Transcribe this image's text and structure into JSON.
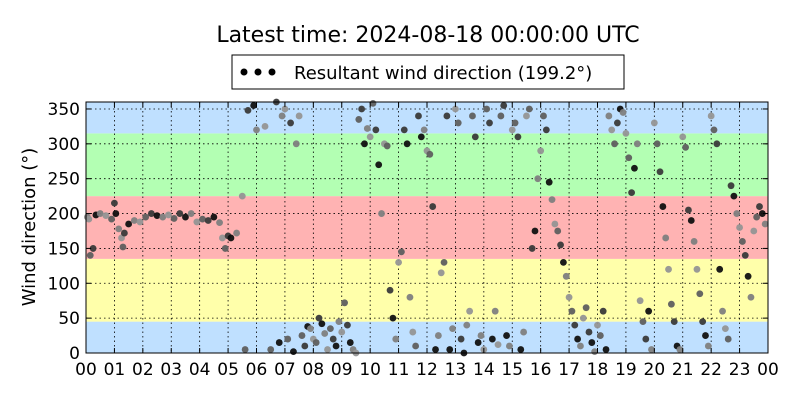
{
  "chart_data": {
    "type": "scatter",
    "title": "Latest time: 2024-08-18 00:00:00 UTC",
    "ylabel": "Wind direction (°)",
    "xlabel": "",
    "xlim": [
      0,
      24
    ],
    "ylim": [
      0,
      360
    ],
    "grid": true,
    "legend": {
      "placement": "top-center",
      "label": "Resultant wind direction (199.2°)"
    },
    "x_ticks": [
      "00",
      "01",
      "02",
      "03",
      "04",
      "05",
      "06",
      "07",
      "08",
      "09",
      "10",
      "11",
      "12",
      "13",
      "14",
      "15",
      "16",
      "17",
      "18",
      "19",
      "20",
      "21",
      "22",
      "23",
      "00"
    ],
    "y_ticks": [
      0,
      50,
      100,
      150,
      200,
      250,
      300,
      350
    ],
    "bands": [
      {
        "from": 0,
        "to": 45,
        "color": "#bfe0ff"
      },
      {
        "from": 45,
        "to": 135,
        "color": "#ffffaa"
      },
      {
        "from": 135,
        "to": 225,
        "color": "#ffb3b3"
      },
      {
        "from": 225,
        "to": 315,
        "color": "#b3ffb3"
      },
      {
        "from": 315,
        "to": 360,
        "color": "#bfe0ff"
      }
    ],
    "series": [
      {
        "colors": [
          "#808080",
          "#959595",
          "#5f5f5f",
          "#3a3a3a",
          "#111111"
        ],
        "points": [
          [
            0.05,
            195
          ],
          [
            0.1,
            192
          ],
          [
            0.15,
            140
          ],
          [
            0.25,
            150
          ],
          [
            0.35,
            198
          ],
          [
            0.5,
            200
          ],
          [
            0.7,
            197
          ],
          [
            0.9,
            192
          ],
          [
            1.0,
            215
          ],
          [
            1.05,
            200
          ],
          [
            1.15,
            178
          ],
          [
            1.25,
            165
          ],
          [
            1.3,
            152
          ],
          [
            1.35,
            172
          ],
          [
            1.5,
            185
          ],
          [
            1.7,
            190
          ],
          [
            1.9,
            188
          ],
          [
            2.1,
            195
          ],
          [
            2.3,
            200
          ],
          [
            2.5,
            197
          ],
          [
            2.7,
            195
          ],
          [
            2.9,
            198
          ],
          [
            3.1,
            193
          ],
          [
            3.3,
            200
          ],
          [
            3.5,
            195
          ],
          [
            3.7,
            200
          ],
          [
            3.9,
            188
          ],
          [
            4.1,
            192
          ],
          [
            4.3,
            190
          ],
          [
            4.5,
            195
          ],
          [
            4.7,
            187
          ],
          [
            4.8,
            165
          ],
          [
            4.9,
            150
          ],
          [
            5.0,
            168
          ],
          [
            5.1,
            165
          ],
          [
            5.3,
            172
          ],
          [
            5.5,
            225
          ],
          [
            5.6,
            5
          ],
          [
            5.7,
            348
          ],
          [
            5.9,
            355
          ],
          [
            6.0,
            320
          ],
          [
            6.3,
            325
          ],
          [
            6.5,
            5
          ],
          [
            6.7,
            360
          ],
          [
            6.8,
            15
          ],
          [
            6.9,
            340
          ],
          [
            7.0,
            350
          ],
          [
            7.1,
            20
          ],
          [
            7.2,
            330
          ],
          [
            7.3,
            2
          ],
          [
            7.4,
            300
          ],
          [
            7.5,
            340
          ],
          [
            7.6,
            25
          ],
          [
            7.7,
            10
          ],
          [
            7.8,
            38
          ],
          [
            7.9,
            35
          ],
          [
            8.0,
            20
          ],
          [
            8.1,
            15
          ],
          [
            8.2,
            50
          ],
          [
            8.3,
            42
          ],
          [
            8.4,
            28
          ],
          [
            8.5,
            5
          ],
          [
            8.6,
            35
          ],
          [
            8.7,
            20
          ],
          [
            8.8,
            10
          ],
          [
            8.9,
            45
          ],
          [
            9.0,
            30
          ],
          [
            9.1,
            72
          ],
          [
            9.2,
            40
          ],
          [
            9.3,
            15
          ],
          [
            9.4,
            5
          ],
          [
            9.5,
            0
          ],
          [
            9.6,
            335
          ],
          [
            9.7,
            350
          ],
          [
            9.8,
            300
          ],
          [
            9.9,
            322
          ],
          [
            10.0,
            310
          ],
          [
            10.1,
            358
          ],
          [
            10.2,
            320
          ],
          [
            10.3,
            270
          ],
          [
            10.4,
            200
          ],
          [
            10.5,
            300
          ],
          [
            10.6,
            297
          ],
          [
            10.7,
            90
          ],
          [
            10.8,
            50
          ],
          [
            10.9,
            20
          ],
          [
            11.0,
            130
          ],
          [
            11.1,
            145
          ],
          [
            11.2,
            320
          ],
          [
            11.3,
            300
          ],
          [
            11.4,
            80
          ],
          [
            11.5,
            30
          ],
          [
            11.6,
            10
          ],
          [
            11.7,
            340
          ],
          [
            11.8,
            310
          ],
          [
            11.9,
            320
          ],
          [
            12.0,
            290
          ],
          [
            12.1,
            285
          ],
          [
            12.2,
            210
          ],
          [
            12.3,
            5
          ],
          [
            12.4,
            25
          ],
          [
            12.5,
            115
          ],
          [
            12.6,
            130
          ],
          [
            12.7,
            340
          ],
          [
            12.8,
            5
          ],
          [
            12.9,
            35
          ],
          [
            13.0,
            350
          ],
          [
            13.1,
            330
          ],
          [
            13.2,
            20
          ],
          [
            13.3,
            0
          ],
          [
            13.4,
            40
          ],
          [
            13.5,
            60
          ],
          [
            13.6,
            340
          ],
          [
            13.7,
            310
          ],
          [
            13.8,
            15
          ],
          [
            13.9,
            25
          ],
          [
            14.0,
            5
          ],
          [
            14.1,
            350
          ],
          [
            14.2,
            330
          ],
          [
            14.3,
            20
          ],
          [
            14.4,
            60
          ],
          [
            14.5,
            12
          ],
          [
            14.6,
            340
          ],
          [
            14.7,
            355
          ],
          [
            14.8,
            25
          ],
          [
            14.9,
            10
          ],
          [
            15.0,
            320
          ],
          [
            15.1,
            330
          ],
          [
            15.2,
            310
          ],
          [
            15.3,
            5
          ],
          [
            15.4,
            30
          ],
          [
            15.5,
            340
          ],
          [
            15.6,
            350
          ],
          [
            15.7,
            150
          ],
          [
            15.8,
            175
          ],
          [
            15.9,
            250
          ],
          [
            16.0,
            290
          ],
          [
            16.1,
            340
          ],
          [
            16.2,
            320
          ],
          [
            16.3,
            245
          ],
          [
            16.4,
            220
          ],
          [
            16.5,
            185
          ],
          [
            16.6,
            175
          ],
          [
            16.7,
            155
          ],
          [
            16.8,
            130
          ],
          [
            16.9,
            110
          ],
          [
            17.0,
            80
          ],
          [
            17.1,
            60
          ],
          [
            17.2,
            40
          ],
          [
            17.3,
            20
          ],
          [
            17.4,
            10
          ],
          [
            17.5,
            50
          ],
          [
            17.6,
            65
          ],
          [
            17.7,
            30
          ],
          [
            17.8,
            15
          ],
          [
            17.9,
            2
          ],
          [
            18.0,
            40
          ],
          [
            18.1,
            25
          ],
          [
            18.2,
            60
          ],
          [
            18.3,
            5
          ],
          [
            18.4,
            340
          ],
          [
            18.5,
            320
          ],
          [
            18.6,
            300
          ],
          [
            18.7,
            330
          ],
          [
            18.8,
            350
          ],
          [
            18.9,
            345
          ],
          [
            19.0,
            315
          ],
          [
            19.1,
            280
          ],
          [
            19.2,
            230
          ],
          [
            19.3,
            265
          ],
          [
            19.4,
            300
          ],
          [
            19.5,
            75
          ],
          [
            19.6,
            45
          ],
          [
            19.7,
            20
          ],
          [
            19.8,
            60
          ],
          [
            19.9,
            5
          ],
          [
            20.0,
            330
          ],
          [
            20.1,
            300
          ],
          [
            20.2,
            260
          ],
          [
            20.3,
            210
          ],
          [
            20.4,
            165
          ],
          [
            20.5,
            120
          ],
          [
            20.6,
            70
          ],
          [
            20.7,
            45
          ],
          [
            20.8,
            10
          ],
          [
            20.9,
            5
          ],
          [
            21.0,
            310
          ],
          [
            21.1,
            295
          ],
          [
            21.2,
            205
          ],
          [
            21.3,
            190
          ],
          [
            21.4,
            160
          ],
          [
            21.5,
            120
          ],
          [
            21.6,
            85
          ],
          [
            21.7,
            45
          ],
          [
            21.8,
            25
          ],
          [
            21.9,
            10
          ],
          [
            22.0,
            340
          ],
          [
            22.1,
            320
          ],
          [
            22.2,
            300
          ],
          [
            22.3,
            120
          ],
          [
            22.4,
            60
          ],
          [
            22.5,
            35
          ],
          [
            22.6,
            20
          ],
          [
            22.7,
            240
          ],
          [
            22.8,
            225
          ],
          [
            22.9,
            200
          ],
          [
            23.0,
            180
          ],
          [
            23.1,
            160
          ],
          [
            23.2,
            140
          ],
          [
            23.3,
            110
          ],
          [
            23.4,
            80
          ],
          [
            23.5,
            175
          ],
          [
            23.6,
            195
          ],
          [
            23.7,
            210
          ],
          [
            23.8,
            200
          ],
          [
            23.9,
            185
          ]
        ]
      }
    ]
  }
}
